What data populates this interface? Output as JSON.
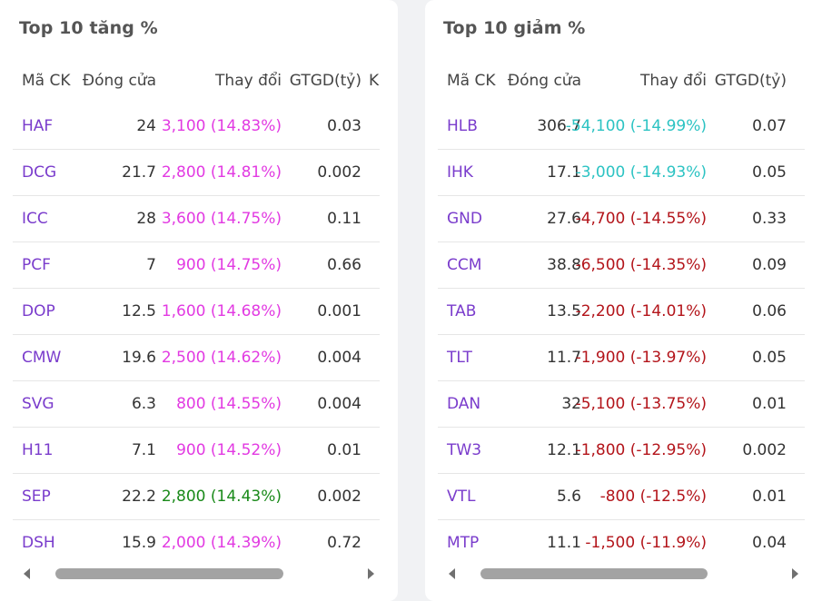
{
  "gainers": {
    "title": "Top 10 tăng %",
    "headers": {
      "symbol": "Mã CK",
      "close": "Đóng cửa",
      "change": "Thay đổi",
      "value": "GTGD(tỷ)",
      "extra": "K"
    },
    "rows": [
      {
        "symbol": "HAF",
        "close": "24",
        "change": "3,100 (14.83%)",
        "value": "0.03",
        "trend": "up-ceil"
      },
      {
        "symbol": "DCG",
        "close": "21.7",
        "change": "2,800 (14.81%)",
        "value": "0.002",
        "trend": "up-ceil"
      },
      {
        "symbol": "ICC",
        "close": "28",
        "change": "3,600 (14.75%)",
        "value": "0.11",
        "trend": "up-ceil"
      },
      {
        "symbol": "PCF",
        "close": "7",
        "change": "900 (14.75%)",
        "value": "0.66",
        "trend": "up-ceil"
      },
      {
        "symbol": "DOP",
        "close": "12.5",
        "change": "1,600 (14.68%)",
        "value": "0.001",
        "trend": "up-ceil"
      },
      {
        "symbol": "CMW",
        "close": "19.6",
        "change": "2,500 (14.62%)",
        "value": "0.004",
        "trend": "up-ceil"
      },
      {
        "symbol": "SVG",
        "close": "6.3",
        "change": "800 (14.55%)",
        "value": "0.004",
        "trend": "up-ceil"
      },
      {
        "symbol": "H11",
        "close": "7.1",
        "change": "900 (14.52%)",
        "value": "0.01",
        "trend": "up-ceil"
      },
      {
        "symbol": "SEP",
        "close": "22.2",
        "change": "2,800 (14.43%)",
        "value": "0.002",
        "trend": "up"
      },
      {
        "symbol": "DSH",
        "close": "15.9",
        "change": "2,000 (14.39%)",
        "value": "0.72",
        "trend": "up-ceil"
      }
    ],
    "scroll_position": 0.2
  },
  "losers": {
    "title": "Top 10 giảm %",
    "headers": {
      "symbol": "Mã CK",
      "close": "Đóng cửa",
      "change": "Thay đổi",
      "value": "GTGD(tỷ)"
    },
    "rows": [
      {
        "symbol": "HLB",
        "close": "306.7",
        "change": "-54,100 (-14.99%)",
        "value": "0.07",
        "trend": "down-floor"
      },
      {
        "symbol": "IHK",
        "close": "17.1",
        "change": "-3,000 (-14.93%)",
        "value": "0.05",
        "trend": "down-floor"
      },
      {
        "symbol": "GND",
        "close": "27.6",
        "change": "-4,700 (-14.55%)",
        "value": "0.33",
        "trend": "down"
      },
      {
        "symbol": "CCM",
        "close": "38.8",
        "change": "-6,500 (-14.35%)",
        "value": "0.09",
        "trend": "down"
      },
      {
        "symbol": "TAB",
        "close": "13.5",
        "change": "-2,200 (-14.01%)",
        "value": "0.06",
        "trend": "down"
      },
      {
        "symbol": "TLT",
        "close": "11.7",
        "change": "-1,900 (-13.97%)",
        "value": "0.05",
        "trend": "down"
      },
      {
        "symbol": "DAN",
        "close": "32",
        "change": "-5,100 (-13.75%)",
        "value": "0.01",
        "trend": "down"
      },
      {
        "symbol": "TW3",
        "close": "12.1",
        "change": "-1,800 (-12.95%)",
        "value": "0.002",
        "trend": "down"
      },
      {
        "symbol": "VTL",
        "close": "5.6",
        "change": "-800 (-12.5%)",
        "value": "0.01",
        "trend": "down"
      },
      {
        "symbol": "MTP",
        "close": "11.1",
        "change": "-1,500 (-11.9%)",
        "value": "0.04",
        "trend": "down"
      }
    ],
    "scroll_position": 0.2
  },
  "colors": {
    "ceiling": "#e23ae2",
    "up": "#1a8a1a",
    "floor": "#2cc3c3",
    "down": "#b3141a",
    "symbol": "#7a3ccc"
  },
  "icons": [
    "scroll-left-arrow-icon",
    "scroll-right-arrow-icon"
  ]
}
